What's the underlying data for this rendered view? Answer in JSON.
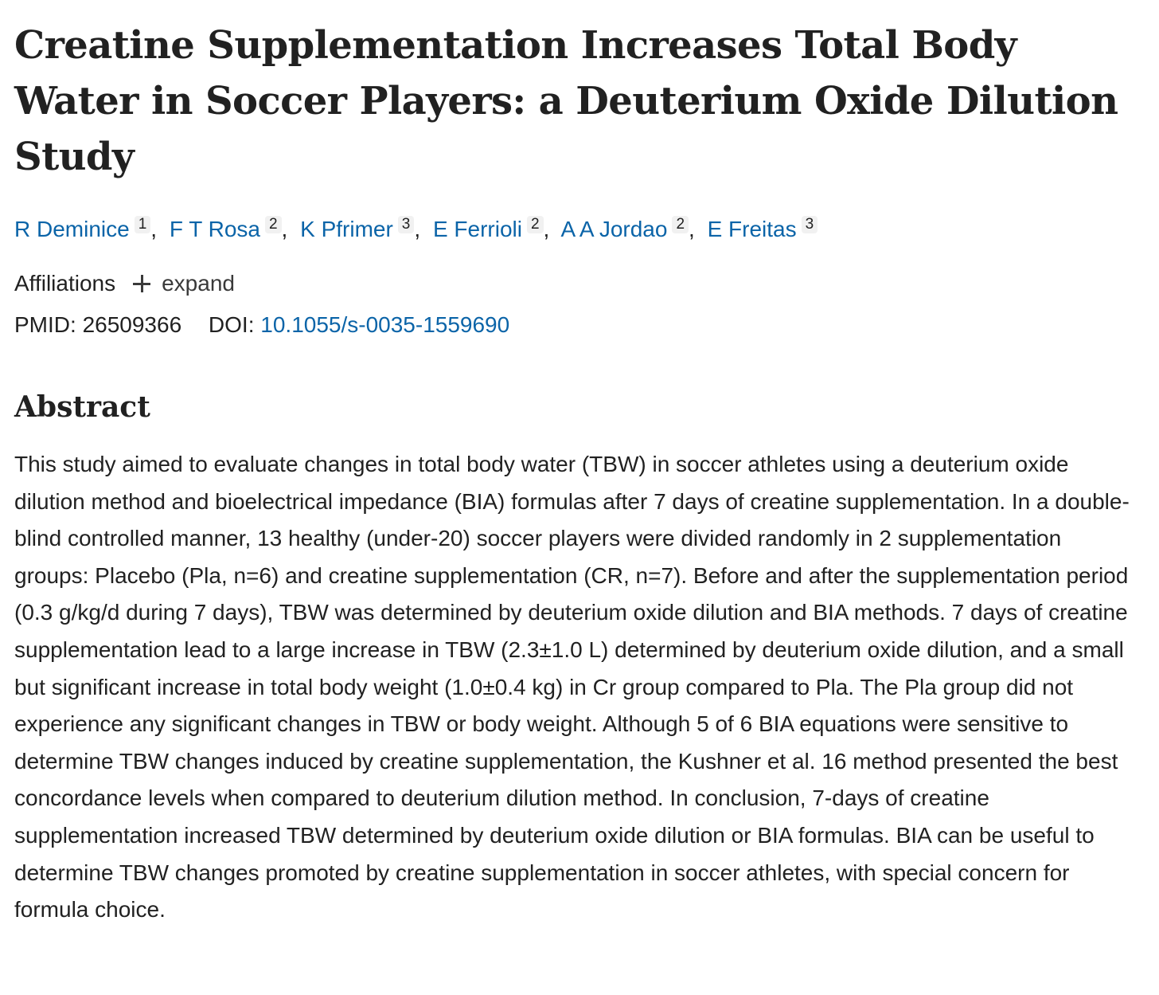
{
  "article": {
    "title": "Creatine Supplementation Increases Total Body Water in Soccer Players: a Deuterium Oxide Dilution Study",
    "authors": [
      {
        "name": "R Deminice",
        "aff": "1"
      },
      {
        "name": "F T Rosa",
        "aff": "2"
      },
      {
        "name": "K Pfrimer",
        "aff": "3"
      },
      {
        "name": "E Ferrioli",
        "aff": "2"
      },
      {
        "name": "A A Jordao",
        "aff": "2"
      },
      {
        "name": "E Freitas",
        "aff": "3"
      }
    ],
    "author_separator": ",",
    "affiliations_label": "Affiliations",
    "expand_label": "expand",
    "pmid_label": "PMID:",
    "pmid": "26509366",
    "doi_label": "DOI:",
    "doi": "10.1055/s-0035-1559690",
    "abstract_heading": "Abstract",
    "abstract_text": "This study aimed to evaluate changes in total body water (TBW) in soccer athletes using a deuterium oxide dilution method and bioelectrical impedance (BIA) formulas after 7 days of creatine supplementation. In a double-blind controlled manner, 13 healthy (under-20) soccer players were divided randomly in 2 supplementation groups: Placebo (Pla, n=6) and creatine supplementation (CR, n=7). Before and after the supplementation period (0.3 g/kg/d during 7 days), TBW was determined by deuterium oxide dilution and BIA methods. 7 days of creatine supplementation lead to a large increase in TBW (2.3±1.0 L) determined by deuterium oxide dilution, and a small but significant increase in total body weight (1.0±0.4 kg) in Cr group compared to Pla. The Pla group did not experience any significant changes in TBW or body weight. Although 5 of 6 BIA equations were sensitive to determine TBW changes induced by creatine supplementation, the Kushner et al. 16 method presented the best concordance levels when compared to deuterium dilution method. In conclusion, 7-days of creatine supplementation increased TBW determined by deuterium oxide dilution or BIA formulas. BIA can be useful to determine TBW changes promoted by creatine supplementation in soccer athletes, with special concern for formula choice."
  },
  "colors": {
    "link": "#0b64a8",
    "text": "#212121",
    "sup_background": "#f1f1f1"
  },
  "icons": {
    "expand": "plus-icon"
  }
}
